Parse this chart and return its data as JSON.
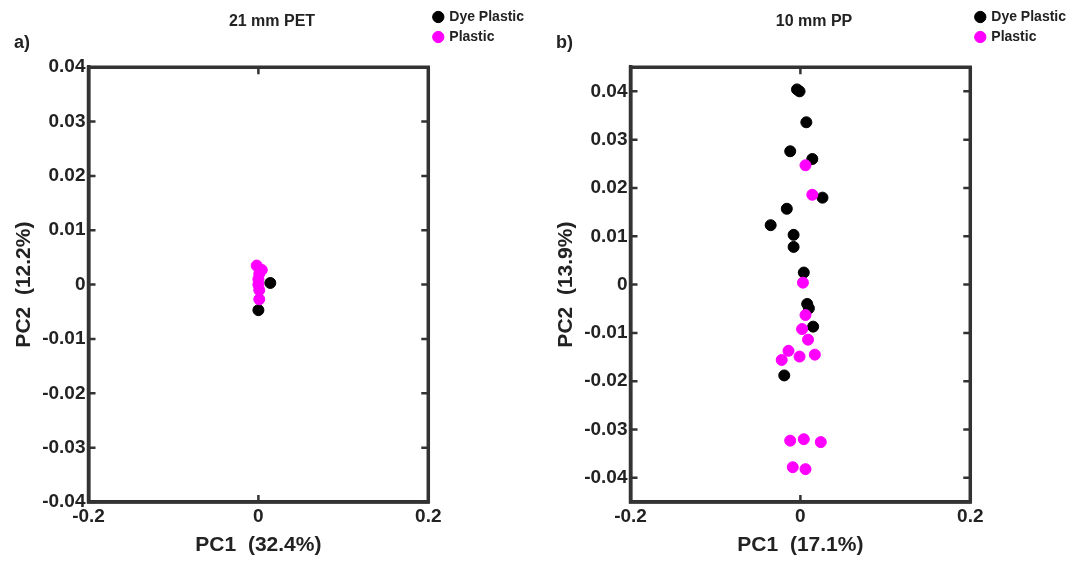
{
  "chart_data": [
    {
      "type": "scatter",
      "title": "21 mm PET",
      "xlabel": "PC1  (32.4%)",
      "ylabel": "PC2  (12.2%)",
      "annotations": [
        "a)"
      ],
      "xlim": [
        -0.2,
        0.2
      ],
      "ylim": [
        -0.04,
        0.04
      ],
      "xticks": [
        -0.2,
        0,
        0.2
      ],
      "yticks": [
        -0.04,
        -0.03,
        -0.02,
        -0.01,
        0,
        0.01,
        0.02,
        0.03,
        0.04
      ],
      "grid": false,
      "legend": "right",
      "marker": "circle",
      "series": [
        {
          "name": "Dye Plastic",
          "color": "#000000",
          "x": [
            0.014,
            0
          ],
          "values": [
            0.0003,
            -0.0047
          ]
        },
        {
          "name": "Plastic",
          "color": "#ff00ff",
          "x": [
            -0.002,
            0.004,
            0.001,
            0,
            0,
            0.001,
            0.001
          ],
          "values": [
            0.0035,
            0.0027,
            0.002,
            0.001,
            0,
            -0.001,
            -0.0027
          ]
        }
      ]
    },
    {
      "type": "scatter",
      "title": "10 mm PP",
      "xlabel": "PC1  (17.1%)",
      "ylabel": "PC2  (13.9%)",
      "annotations": [
        "b)"
      ],
      "xlim": [
        -0.2,
        0.2
      ],
      "ylim": [
        -0.045,
        0.045
      ],
      "xticks": [
        -0.2,
        0,
        0.2
      ],
      "yticks": [
        -0.04,
        -0.03,
        -0.02,
        -0.01,
        0,
        0.01,
        0.02,
        0.03,
        0.04
      ],
      "grid": false,
      "legend": "right",
      "marker": "circle",
      "series": [
        {
          "name": "Dye Plastic",
          "color": "#000000",
          "x": [
            -0.004,
            -0.001,
            0.007,
            -0.012,
            0.014,
            0.026,
            -0.016,
            -0.035,
            -0.008,
            -0.008,
            0.004,
            0.008,
            0.01,
            0.015,
            -0.019
          ],
          "values": [
            0.0404,
            0.04,
            0.0336,
            0.0276,
            0.026,
            0.018,
            0.0157,
            0.0123,
            0.0103,
            0.0078,
            0.0025,
            -0.004,
            -0.0049,
            -0.0087,
            -0.0188
          ]
        },
        {
          "name": "Plastic",
          "color": "#ff00ff",
          "x": [
            0.006,
            0.014,
            0.003,
            0.006,
            0.002,
            0.009,
            -0.014,
            -0.022,
            -0.001,
            0.017,
            -0.012,
            0.004,
            0.024,
            -0.009,
            0.006
          ],
          "values": [
            0.0247,
            0.0186,
            0.0004,
            -0.0063,
            -0.0092,
            -0.0114,
            -0.0137,
            -0.0156,
            -0.0149,
            -0.0145,
            -0.0323,
            -0.032,
            -0.0326,
            -0.0378,
            -0.0382
          ]
        }
      ]
    }
  ]
}
